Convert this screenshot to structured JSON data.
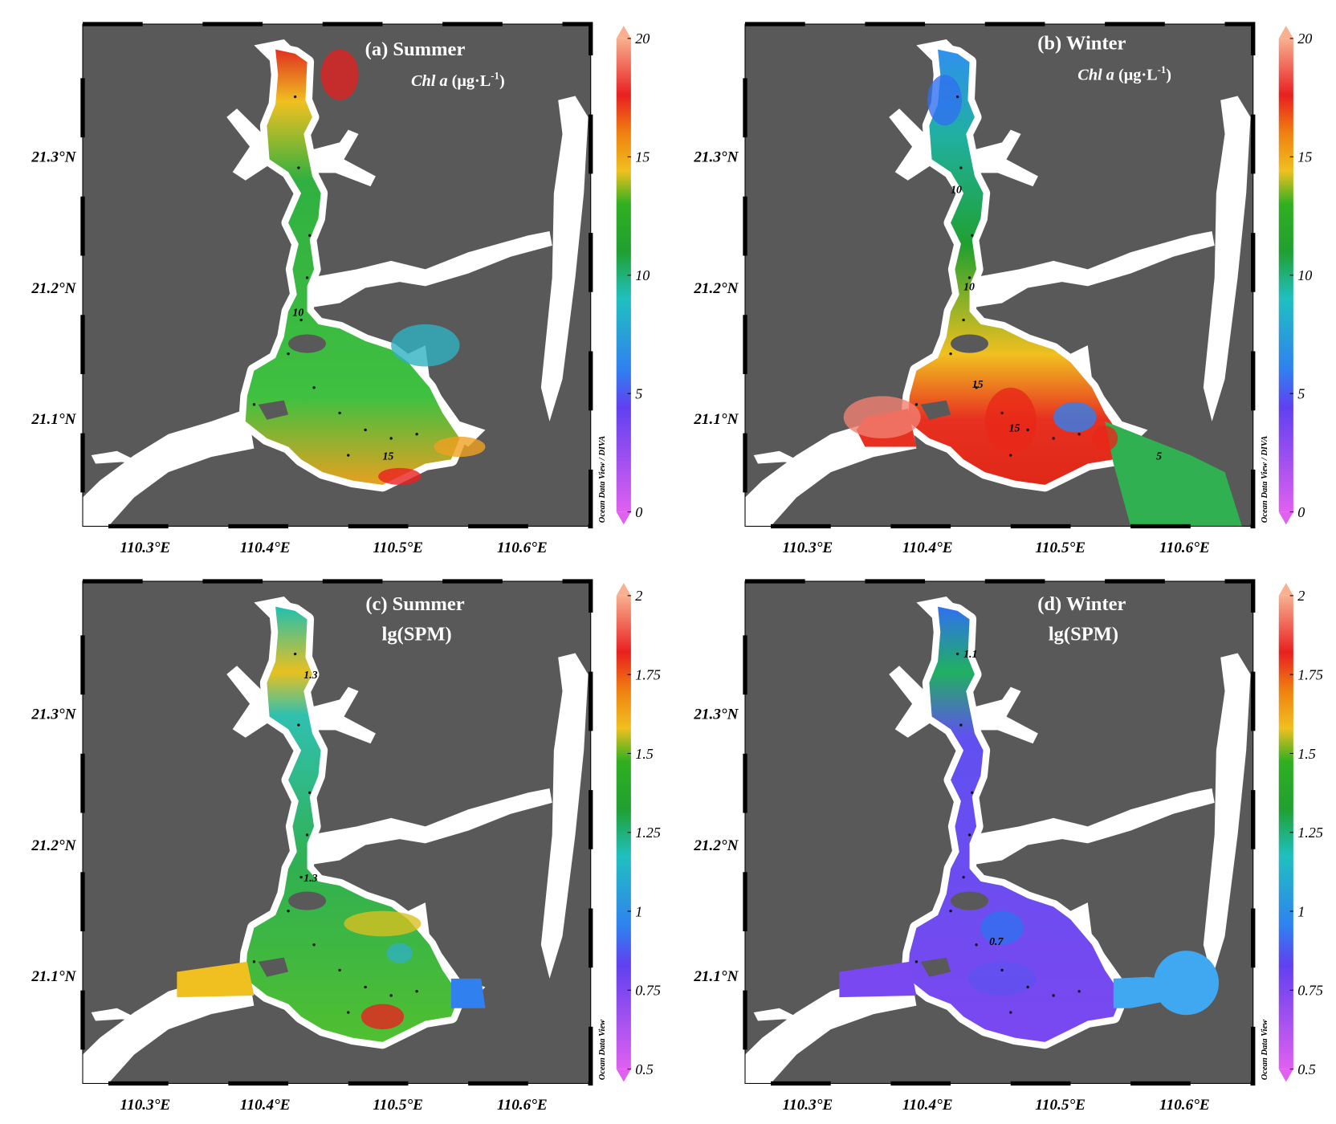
{
  "panels": [
    {
      "title": "(a) Summer",
      "subtitle": {
        "italic": "Chl a",
        "text": " (μg·L",
        "sup": "-1",
        "close": ")"
      },
      "colorbar": {
        "range": [
          0,
          20
        ],
        "ticks": [
          0,
          5,
          10,
          15,
          20
        ]
      },
      "credit": "Ocean Data View / DIVA",
      "contour_labels": [
        "10",
        "15"
      ]
    },
    {
      "title": "(b) Winter",
      "subtitle": {
        "italic": "Chl a",
        "text": " (μg·L",
        "sup": "-1",
        "close": ")"
      },
      "colorbar": {
        "range": [
          0,
          20
        ],
        "ticks": [
          0,
          5,
          10,
          15,
          20
        ]
      },
      "credit": "Ocean Data View / DIVA",
      "contour_labels": [
        "10",
        "10",
        "15",
        "15",
        "5"
      ]
    },
    {
      "title": "(c) Summer",
      "subtitle": "lg(SPM)",
      "colorbar": {
        "range": [
          0.5,
          2
        ],
        "ticks": [
          0.5,
          0.75,
          1,
          1.25,
          1.5,
          1.75,
          2
        ]
      },
      "credit": "Ocean Data View",
      "contour_labels": [
        "1.3",
        "1.3"
      ]
    },
    {
      "title": "(d) Winter",
      "subtitle": "lg(SPM)",
      "colorbar": {
        "range": [
          0.5,
          2
        ],
        "ticks": [
          0.5,
          0.75,
          1,
          1.25,
          1.5,
          1.75,
          2
        ]
      },
      "credit": "Ocean Data View",
      "contour_labels": [
        "1.1",
        "0.7"
      ]
    }
  ],
  "lat_labels": [
    "21.3°N",
    "21.2°N",
    "21.1°N"
  ],
  "lon_labels": [
    "110.3°E",
    "110.4°E",
    "110.5°E",
    "110.6°E"
  ]
}
